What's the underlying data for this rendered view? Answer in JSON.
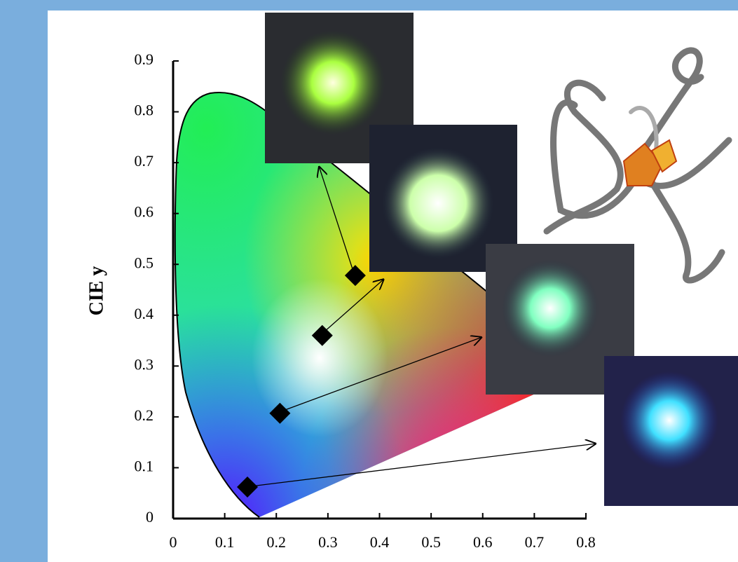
{
  "chart_data": {
    "type": "scatter",
    "y_label": "CIE y",
    "xlim": [
      0,
      0.8
    ],
    "ylim": [
      0,
      0.9
    ],
    "xticks": [
      0,
      0.1,
      0.2,
      0.3,
      0.4,
      0.5,
      0.6,
      0.7,
      0.8
    ],
    "yticks": [
      0,
      0.1,
      0.2,
      0.3,
      0.4,
      0.5,
      0.6,
      0.7,
      0.8,
      0.9
    ],
    "series": [
      {
        "color": "#000000",
        "x": [
          0.353,
          0.289,
          0.207,
          0.144
        ],
        "values": [
          0.478,
          0.36,
          0.207,
          0.062
        ]
      }
    ]
  }
}
